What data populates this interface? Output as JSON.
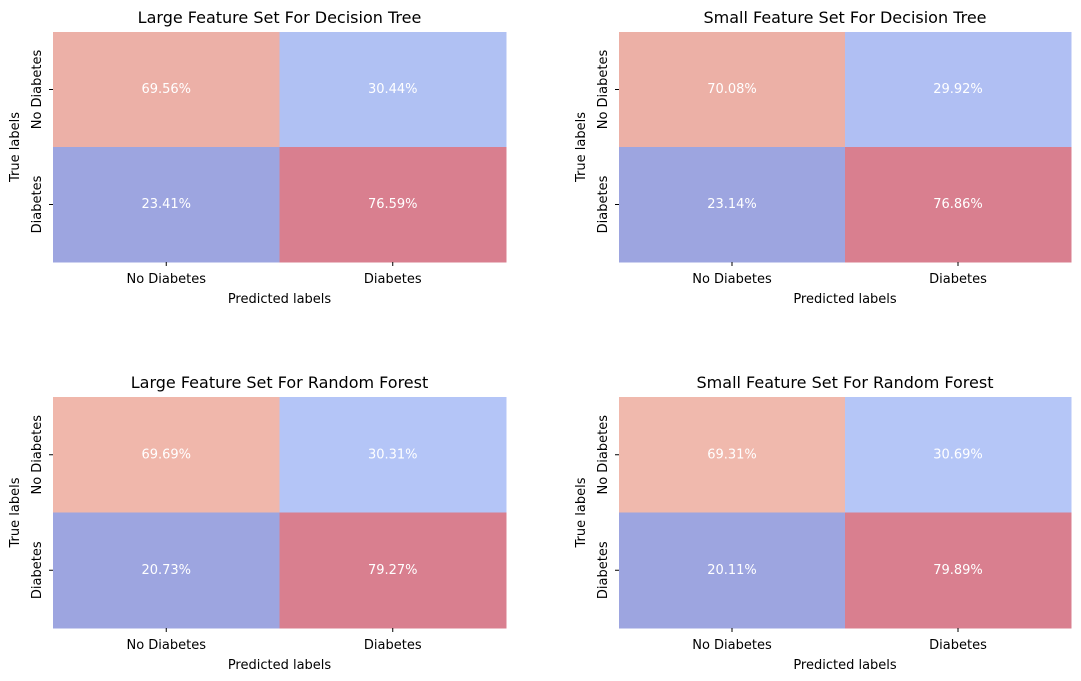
{
  "chart_data": [
    {
      "type": "heatmap",
      "title": "Large Feature Set For Decision Tree",
      "xlabel": "Predicted labels",
      "ylabel": "True labels",
      "x_categories": [
        "No Diabetes",
        "Diabetes"
      ],
      "y_categories": [
        "No Diabetes",
        "Diabetes"
      ],
      "values": [
        [
          69.56,
          30.44
        ],
        [
          23.41,
          76.59
        ]
      ],
      "labels": [
        [
          "69.56%",
          "30.44%"
        ],
        [
          "23.41%",
          "76.59%"
        ]
      ],
      "colors": [
        [
          "#ecb0a7",
          "#b0c1f3"
        ],
        [
          "#9da5e0",
          "#d97f8f"
        ]
      ]
    },
    {
      "type": "heatmap",
      "title": "Small Feature Set For Decision Tree",
      "xlabel": "Predicted labels",
      "ylabel": "True labels",
      "x_categories": [
        "No Diabetes",
        "Diabetes"
      ],
      "y_categories": [
        "No Diabetes",
        "Diabetes"
      ],
      "values": [
        [
          70.08,
          29.92
        ],
        [
          23.14,
          76.86
        ]
      ],
      "labels": [
        [
          "70.08%",
          "29.92%"
        ],
        [
          "23.14%",
          "76.86%"
        ]
      ],
      "colors": [
        [
          "#ecb0a6",
          "#b0bff3"
        ],
        [
          "#9da5e0",
          "#d97f8f"
        ]
      ]
    },
    {
      "type": "heatmap",
      "title": "Large Feature Set For Random Forest",
      "xlabel": "Predicted labels",
      "ylabel": "True labels",
      "x_categories": [
        "No Diabetes",
        "Diabetes"
      ],
      "y_categories": [
        "No Diabetes",
        "Diabetes"
      ],
      "values": [
        [
          69.69,
          30.31
        ],
        [
          20.73,
          79.27
        ]
      ],
      "labels": [
        [
          "69.69%",
          "30.31%"
        ],
        [
          "20.73%",
          "79.27%"
        ]
      ],
      "colors": [
        [
          "#f0b7ab",
          "#b4c5f7"
        ],
        [
          "#9da5e0",
          "#d97f8f"
        ]
      ]
    },
    {
      "type": "heatmap",
      "title": "Small Feature Set For Random Forest",
      "xlabel": "Predicted labels",
      "ylabel": "True labels",
      "x_categories": [
        "No Diabetes",
        "Diabetes"
      ],
      "y_categories": [
        "No Diabetes",
        "Diabetes"
      ],
      "values": [
        [
          69.31,
          30.69
        ],
        [
          20.11,
          79.89
        ]
      ],
      "labels": [
        [
          "69.31%",
          "30.69%"
        ],
        [
          "20.11%",
          "79.89%"
        ]
      ],
      "colors": [
        [
          "#f0b9ad",
          "#b5c6f7"
        ],
        [
          "#9da5e0",
          "#d97f8f"
        ]
      ]
    }
  ]
}
